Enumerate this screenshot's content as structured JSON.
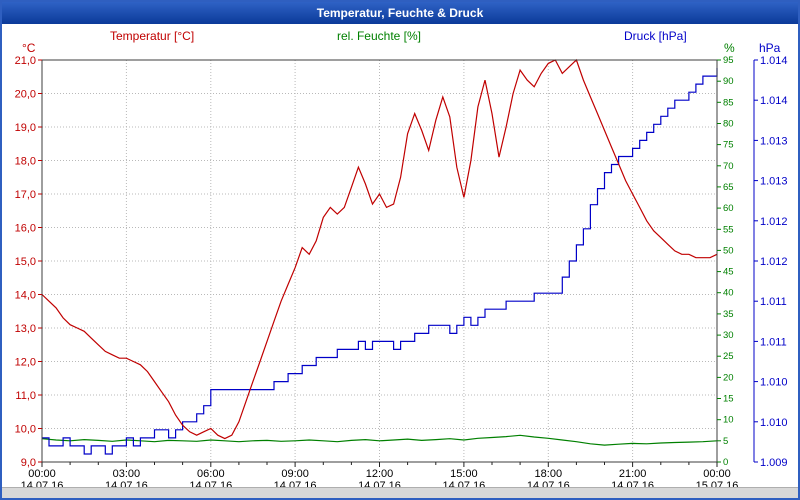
{
  "chart_data": {
    "type": "line",
    "title": "Temperatur, Feuchte & Druck",
    "x_axis": {
      "range_hours": [
        0,
        24
      ],
      "major_tick_hours": 3,
      "tick_times": [
        "00:00",
        "03:00",
        "06:00",
        "09:00",
        "12:00",
        "15:00",
        "18:00",
        "21:00",
        "00:00"
      ],
      "tick_dates": [
        "14.07.16",
        "14.07.16",
        "14.07.16",
        "14.07.16",
        "14.07.16",
        "14.07.16",
        "14.07.16",
        "14.07.16",
        "15.07.16"
      ]
    },
    "axes": {
      "temperature": {
        "label": "°C",
        "color": "#c00000",
        "min": 9,
        "max": 21,
        "tick_labels": [
          "21,0",
          "20,0",
          "19,0",
          "18,0",
          "17,0",
          "16,0",
          "15,0",
          "14,0",
          "13,0",
          "12,0",
          "11,0",
          "10,0",
          "9,0"
        ]
      },
      "humidity": {
        "label": "%",
        "color": "#008000",
        "min": 0,
        "max": 95,
        "tick_labels": [
          "95",
          "90",
          "85",
          "80",
          "75",
          "70",
          "65",
          "60",
          "55",
          "50",
          "45",
          "40",
          "35",
          "30",
          "25",
          "20",
          "15",
          "10",
          "5",
          "0"
        ]
      },
      "pressure": {
        "label": "hPa",
        "color": "#0000c8",
        "min": 1.0095,
        "max": 1.0145,
        "tick_labels": [
          "1.014",
          "1.014",
          "1.013",
          "1.013",
          "1.012",
          "1.012",
          "1.011",
          "1.011",
          "1.010",
          "1.010",
          "1.009"
        ]
      }
    },
    "series": [
      {
        "name": "Temperatur [°C]",
        "axis": "temperature",
        "color": "#c00000",
        "x_start": 0,
        "x_step": 0.25,
        "step": false,
        "values": [
          14.0,
          13.8,
          13.6,
          13.3,
          13.1,
          13.0,
          12.9,
          12.7,
          12.5,
          12.3,
          12.2,
          12.1,
          12.1,
          12.0,
          11.9,
          11.7,
          11.4,
          11.1,
          10.8,
          10.4,
          10.1,
          9.9,
          9.8,
          9.9,
          10.0,
          9.8,
          9.7,
          9.8,
          10.2,
          10.8,
          11.4,
          12.0,
          12.6,
          13.2,
          13.8,
          14.3,
          14.8,
          15.4,
          15.2,
          15.6,
          16.3,
          16.6,
          16.4,
          16.6,
          17.2,
          17.8,
          17.3,
          16.7,
          17.0,
          16.6,
          16.7,
          17.5,
          18.8,
          19.4,
          18.9,
          18.3,
          19.2,
          19.9,
          19.3,
          17.8,
          16.9,
          18.0,
          19.6,
          20.4,
          19.4,
          18.1,
          19.0,
          20.0,
          20.7,
          20.4,
          20.2,
          20.6,
          20.9,
          21.0,
          20.6,
          20.8,
          21.0,
          20.4,
          19.9,
          19.4,
          18.9,
          18.4,
          17.9,
          17.4,
          17.0,
          16.6,
          16.2,
          15.9,
          15.7,
          15.5,
          15.3,
          15.2,
          15.2,
          15.1,
          15.1,
          15.1,
          15.2
        ]
      },
      {
        "name": "rel. Feuchte [%]",
        "axis": "humidity",
        "color": "#008000",
        "x_start": 0,
        "x_step": 0.5,
        "step": false,
        "values": [
          5.5,
          5.2,
          5.0,
          5.3,
          5.1,
          4.9,
          5.2,
          5.0,
          4.8,
          5.1,
          5.0,
          4.9,
          5.2,
          5.0,
          4.8,
          5.0,
          5.1,
          4.9,
          5.0,
          5.2,
          5.0,
          4.8,
          5.1,
          5.3,
          5.0,
          5.2,
          5.4,
          5.1,
          5.3,
          5.5,
          5.2,
          5.6,
          5.8,
          6.0,
          6.3,
          5.9,
          5.6,
          5.2,
          4.8,
          4.3,
          4.0,
          4.2,
          4.4,
          4.3,
          4.5,
          4.6,
          4.7,
          4.8,
          5.0
        ]
      },
      {
        "name": "Druck [hPa]",
        "axis": "pressure",
        "color": "#0000c8",
        "x_start": 0,
        "x_step": 0.25,
        "step": true,
        "values": [
          1.0098,
          1.0097,
          1.0097,
          1.0098,
          1.0097,
          1.0097,
          1.0096,
          1.0097,
          1.0097,
          1.0096,
          1.0097,
          1.0097,
          1.0098,
          1.0097,
          1.0098,
          1.0098,
          1.0099,
          1.0099,
          1.0098,
          1.0099,
          1.01,
          1.01,
          1.0101,
          1.0102,
          1.0104,
          1.0104,
          1.0104,
          1.0104,
          1.0104,
          1.0104,
          1.0104,
          1.0104,
          1.0104,
          1.0105,
          1.0105,
          1.0106,
          1.0106,
          1.0107,
          1.0107,
          1.0108,
          1.0108,
          1.0108,
          1.0109,
          1.0109,
          1.0109,
          1.011,
          1.0109,
          1.011,
          1.011,
          1.011,
          1.0109,
          1.011,
          1.011,
          1.0111,
          1.0111,
          1.0112,
          1.0112,
          1.0112,
          1.0111,
          1.0112,
          1.0113,
          1.0112,
          1.0113,
          1.0114,
          1.0114,
          1.0114,
          1.0115,
          1.0115,
          1.0115,
          1.0115,
          1.0116,
          1.0116,
          1.0116,
          1.0116,
          1.0118,
          1.012,
          1.0122,
          1.0124,
          1.0127,
          1.0129,
          1.0131,
          1.0132,
          1.0133,
          1.0133,
          1.0134,
          1.0135,
          1.0136,
          1.0137,
          1.0138,
          1.0139,
          1.014,
          1.014,
          1.0141,
          1.0142,
          1.0143,
          1.0143,
          1.0144
        ]
      }
    ],
    "grid": "dotted",
    "frame_color": "#3d3d3d",
    "window_border_color": "#2f5fc0"
  }
}
